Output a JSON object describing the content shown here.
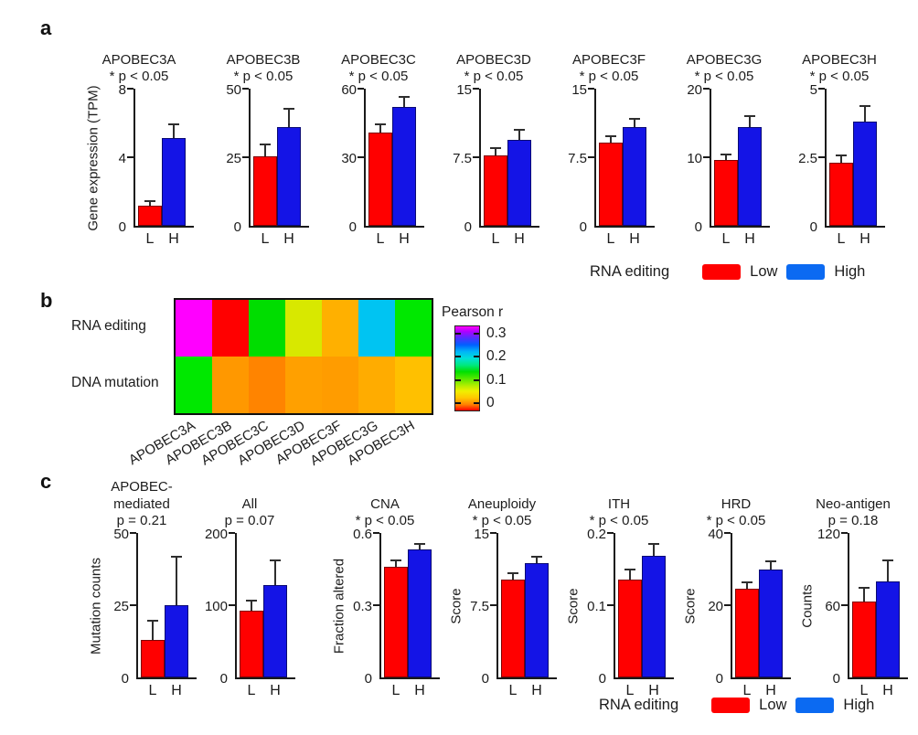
{
  "panels": {
    "a": {
      "letter": "a"
    },
    "b": {
      "letter": "b"
    },
    "c": {
      "letter": "c"
    }
  },
  "legend": {
    "context": "RNA editing",
    "low_label": "Low",
    "high_label": "High"
  },
  "colors": {
    "low_bar": "#ff0000",
    "high_bar": "#1414e6",
    "low_legend": "#ff0000",
    "high_legend": "#0b6af2",
    "error_bar": "#2e2e2e"
  },
  "chart_data": [
    {
      "panel": "a",
      "type": "bar",
      "title_lines": [
        "APOBEC3A",
        "* p < 0.05"
      ],
      "ylabel": "Gene expression (TPM)",
      "ylim": [
        0,
        8
      ],
      "yticks": [
        0,
        4,
        8
      ],
      "categories": [
        "L",
        "H"
      ],
      "series_names": [
        "Low",
        "High"
      ],
      "values": [
        1.2,
        5.1
      ],
      "errors": [
        0.3,
        0.9
      ]
    },
    {
      "panel": "a",
      "type": "bar",
      "title_lines": [
        "APOBEC3B",
        "* p < 0.05"
      ],
      "ylim": [
        0,
        50
      ],
      "yticks": [
        0,
        25,
        50
      ],
      "categories": [
        "L",
        "H"
      ],
      "series_names": [
        "Low",
        "High"
      ],
      "values": [
        25.5,
        36
      ],
      "errors": [
        4.5,
        7
      ]
    },
    {
      "panel": "a",
      "type": "bar",
      "title_lines": [
        "APOBEC3C",
        "* p < 0.05"
      ],
      "ylim": [
        0,
        60
      ],
      "yticks": [
        0,
        30,
        60
      ],
      "categories": [
        "L",
        "H"
      ],
      "series_names": [
        "Low",
        "High"
      ],
      "values": [
        41,
        52
      ],
      "errors": [
        4,
        5
      ]
    },
    {
      "panel": "a",
      "type": "bar",
      "title_lines": [
        "APOBEC3D",
        "* p < 0.05"
      ],
      "ylim": [
        0,
        15
      ],
      "yticks": [
        0,
        7.5,
        15
      ],
      "categories": [
        "L",
        "H"
      ],
      "series_names": [
        "Low",
        "High"
      ],
      "values": [
        7.7,
        9.4
      ],
      "errors": [
        0.9,
        1.2
      ]
    },
    {
      "panel": "a",
      "type": "bar",
      "title_lines": [
        "APOBEC3F",
        "* p < 0.05"
      ],
      "ylim": [
        0,
        15
      ],
      "yticks": [
        0,
        7.5,
        15
      ],
      "categories": [
        "L",
        "H"
      ],
      "series_names": [
        "Low",
        "High"
      ],
      "values": [
        9.1,
        10.8
      ],
      "errors": [
        0.8,
        1.0
      ]
    },
    {
      "panel": "a",
      "type": "bar",
      "title_lines": [
        "APOBEC3G",
        "* p < 0.05"
      ],
      "ylim": [
        0,
        20
      ],
      "yticks": [
        0,
        10,
        20
      ],
      "categories": [
        "L",
        "H"
      ],
      "series_names": [
        "Low",
        "High"
      ],
      "values": [
        9.6,
        14.4
      ],
      "errors": [
        1.0,
        1.7
      ]
    },
    {
      "panel": "a",
      "type": "bar",
      "title_lines": [
        "APOBEC3H",
        "* p < 0.05"
      ],
      "ylim": [
        0,
        5
      ],
      "yticks": [
        0,
        2.5,
        5
      ],
      "categories": [
        "L",
        "H"
      ],
      "series_names": [
        "Low",
        "High"
      ],
      "values": [
        2.3,
        3.8
      ],
      "errors": [
        0.3,
        0.6
      ]
    },
    {
      "panel": "b",
      "type": "heatmap",
      "rows": [
        "RNA editing",
        "DNA mutation"
      ],
      "columns": [
        "APOBEC3A",
        "APOBEC3B",
        "APOBEC3C",
        "APOBEC3D",
        "APOBEC3F",
        "APOBEC3G",
        "APOBEC3H"
      ],
      "cell_colors": [
        [
          "#ff00ff",
          "#ff0000",
          "#00dd00",
          "#d8e800",
          "#ffb000",
          "#00c4f2",
          "#00e800"
        ],
        [
          "#00e800",
          "#ff9800",
          "#ff8400",
          "#ffa000",
          "#ff9c00",
          "#ffac00",
          "#ffc000"
        ]
      ],
      "values_approx": [
        [
          0.32,
          0.0,
          0.12,
          0.08,
          0.05,
          0.2,
          0.12
        ],
        [
          0.12,
          0.03,
          0.02,
          0.04,
          0.04,
          0.05,
          0.06
        ]
      ],
      "colorbar": {
        "title": "Pearson r",
        "tick_labels": [
          "0.3",
          "0.2",
          "0.1",
          "0"
        ],
        "range": [
          0,
          0.3
        ]
      }
    },
    {
      "panel": "c",
      "type": "bar",
      "title_lines": [
        "APOBEC-",
        "mediated",
        "p = 0.21"
      ],
      "ylabel": "Mutation counts",
      "ylim": [
        0,
        50
      ],
      "yticks": [
        0,
        25,
        50
      ],
      "categories": [
        "L",
        "H"
      ],
      "series_names": [
        "Low",
        "High"
      ],
      "values": [
        13,
        25
      ],
      "errors": [
        7,
        17
      ]
    },
    {
      "panel": "c",
      "type": "bar",
      "title_lines": [
        "All",
        "p = 0.07"
      ],
      "ylim": [
        0,
        200
      ],
      "yticks": [
        0,
        100,
        200
      ],
      "categories": [
        "L",
        "H"
      ],
      "series_names": [
        "Low",
        "High"
      ],
      "values": [
        93,
        128
      ],
      "errors": [
        15,
        35
      ]
    },
    {
      "panel": "c",
      "type": "bar",
      "gap_before": true,
      "title_lines": [
        "CNA",
        "* p < 0.05"
      ],
      "ylabel": "Fraction altered",
      "ylim": [
        0,
        0.6
      ],
      "yticks": [
        0,
        0.3,
        0.6
      ],
      "categories": [
        "L",
        "H"
      ],
      "series_names": [
        "Low",
        "High"
      ],
      "values": [
        0.46,
        0.53
      ],
      "errors": [
        0.03,
        0.03
      ]
    },
    {
      "panel": "c",
      "type": "bar",
      "title_lines": [
        "Aneuploidy",
        "* p < 0.05"
      ],
      "ylabel": "Score",
      "ylim": [
        0,
        15
      ],
      "yticks": [
        0,
        7.5,
        15
      ],
      "categories": [
        "L",
        "H"
      ],
      "series_names": [
        "Low",
        "High"
      ],
      "values": [
        10.2,
        11.9
      ],
      "errors": [
        0.7,
        0.7
      ]
    },
    {
      "panel": "c",
      "type": "bar",
      "title_lines": [
        "ITH",
        "* p < 0.05"
      ],
      "ylabel": "Score",
      "ylim": [
        0,
        0.2
      ],
      "yticks": [
        0,
        0.1,
        0.2
      ],
      "categories": [
        "L",
        "H"
      ],
      "series_names": [
        "Low",
        "High"
      ],
      "values": [
        0.135,
        0.168
      ],
      "errors": [
        0.016,
        0.018
      ]
    },
    {
      "panel": "c",
      "type": "bar",
      "title_lines": [
        "HRD",
        "* p < 0.05"
      ],
      "ylabel": "Score",
      "ylim": [
        0,
        40
      ],
      "yticks": [
        0,
        20,
        40
      ],
      "categories": [
        "L",
        "H"
      ],
      "series_names": [
        "Low",
        "High"
      ],
      "values": [
        24.5,
        30
      ],
      "errors": [
        2,
        2.5
      ]
    },
    {
      "panel": "c",
      "type": "bar",
      "title_lines": [
        "Neo-antigen",
        "p = 0.18"
      ],
      "ylabel": "Counts",
      "ylim": [
        0,
        120
      ],
      "yticks": [
        0,
        60,
        120
      ],
      "categories": [
        "L",
        "H"
      ],
      "series_names": [
        "Low",
        "High"
      ],
      "values": [
        63,
        80
      ],
      "errors": [
        12,
        18
      ]
    }
  ]
}
